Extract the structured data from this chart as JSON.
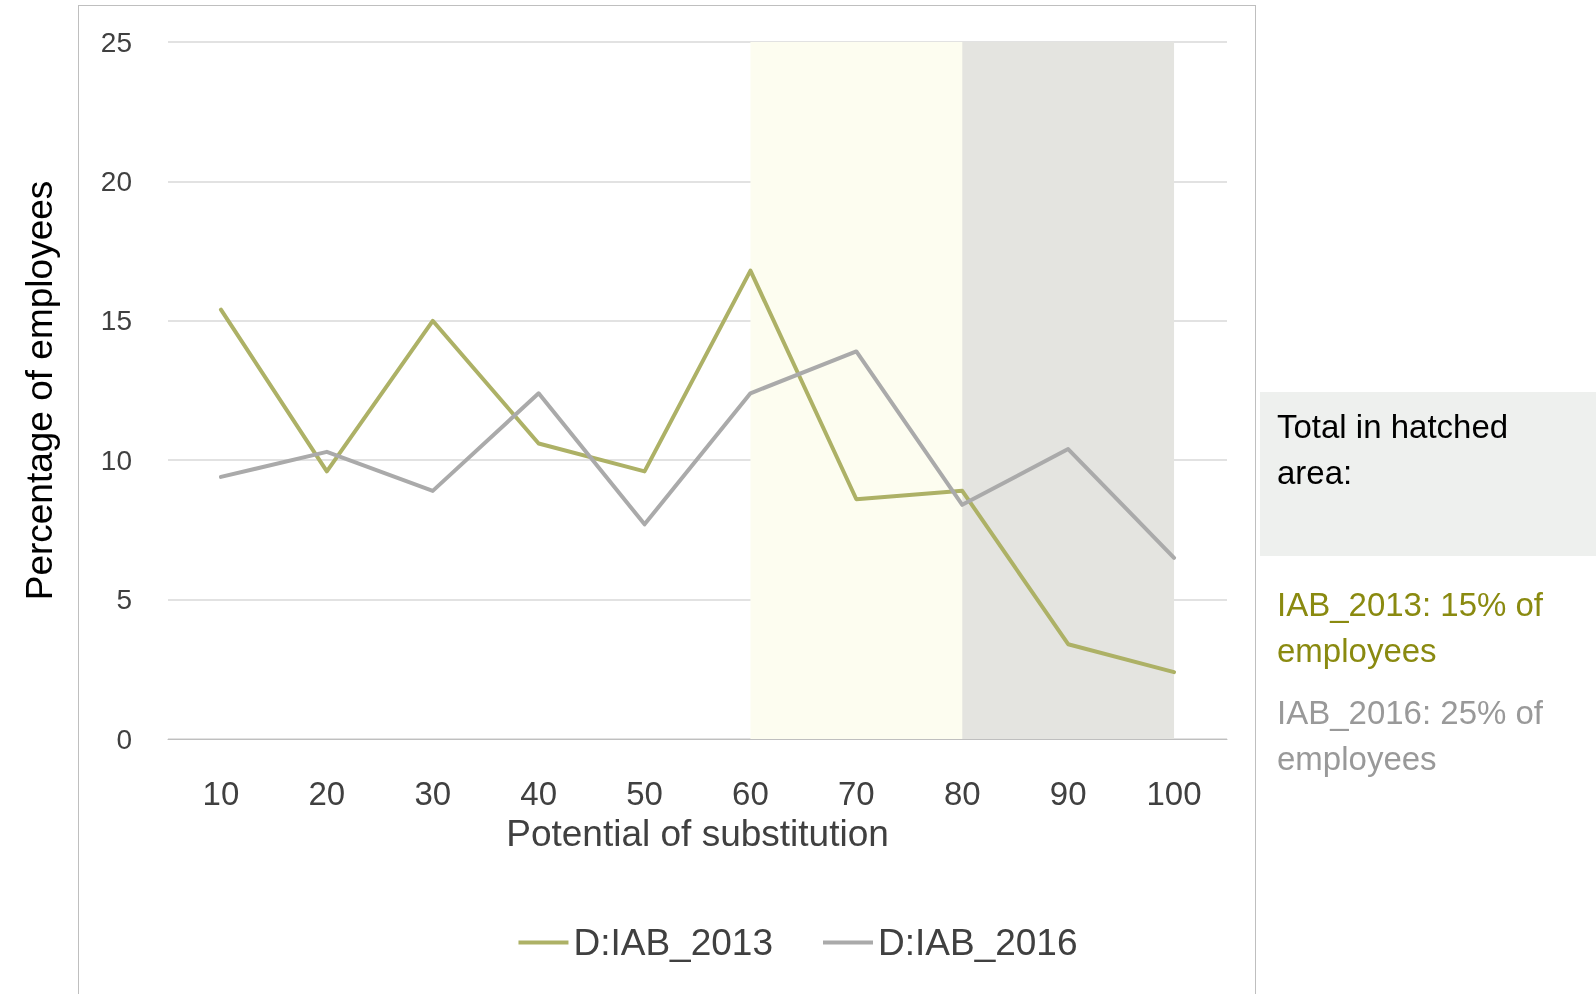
{
  "chart_data": {
    "type": "line",
    "xlabel": "Potential of substitution",
    "ylabel": "Percentage of employees",
    "categories": [
      "10",
      "20",
      "30",
      "40",
      "50",
      "60",
      "70",
      "80",
      "90",
      "100"
    ],
    "series": [
      {
        "name": "D:IAB_2013",
        "color": "#adb166",
        "values": [
          15.4,
          9.6,
          15.0,
          10.6,
          9.6,
          16.8,
          8.6,
          8.9,
          3.4,
          2.4
        ]
      },
      {
        "name": "D:IAB_2016",
        "color": "#aaaaaa",
        "values": [
          9.4,
          10.3,
          8.9,
          12.4,
          7.7,
          12.4,
          13.9,
          8.4,
          10.4,
          6.5
        ]
      }
    ],
    "ylim": [
      0,
      25
    ],
    "yticks": [
      0,
      5,
      10,
      15,
      20,
      25
    ],
    "grid": "y",
    "legend": "bottom",
    "marker": "none",
    "line_style": "solid",
    "bands": [
      {
        "axis": "x",
        "from": "60",
        "to": "90",
        "color": "#fdfdf0"
      },
      {
        "axis": "x",
        "from": "80",
        "to": "100",
        "color": "#e4e4e0"
      }
    ],
    "annotations": [
      "Total in hatched area:",
      "IAB_2013: 15% of employees",
      "IAB_2016: 25% of employees"
    ]
  }
}
